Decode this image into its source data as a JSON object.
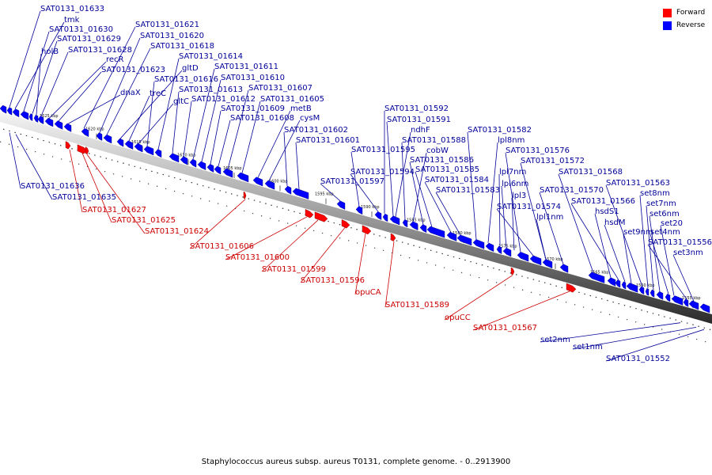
{
  "caption": "Staphylococcus aureus subsp. aureus T0131, complete genome. - 0..2913900",
  "legend": {
    "forward": {
      "label": "Forward",
      "color": "#ff0000"
    },
    "reverse": {
      "label": "Reverse",
      "color": "#0000ff"
    }
  },
  "colors": {
    "forward_label": "#cc0000",
    "reverse_label": "#000099"
  },
  "ticks": [
    "1625 kbp",
    "1620 kbp",
    "1615 kbp",
    "1610 kbp",
    "1605 kbp",
    "1600 kbp",
    "1595 kbp",
    "1590 kbp",
    "1585 kbp",
    "1580 kbp",
    "1575 kbp",
    "1570 kbp",
    "1565 kbp",
    "1560 kbp",
    "1555 kbp"
  ],
  "reverse_genes_above": [
    "SAT0131_01633",
    "tmk",
    "SAT0131_01630",
    "SAT0131_01629",
    "holB",
    "SAT0131_01628",
    "recR",
    "SAT0131_01623",
    "dnaX",
    "SAT0131_01621",
    "SAT0131_01620",
    "SAT0131_01618",
    "gltD",
    "treC",
    "gltC",
    "SAT0131_01616",
    "SAT0131_01614",
    "SAT0131_01613",
    "SAT0131_01612",
    "SAT0131_01611",
    "SAT0131_01610",
    "SAT0131_01609",
    "SAT0131_01608",
    "SAT0131_01607",
    "SAT0131_01605",
    "metB",
    "cysM",
    "SAT0131_01602",
    "SAT0131_01601",
    "SAT0131_01597",
    "SAT0131_01595",
    "SAT0131_01594",
    "SAT0131_01592",
    "SAT0131_01591",
    "ndhF",
    "SAT0131_01588",
    "cobW",
    "SAT0131_01586",
    "SAT0131_01585",
    "SAT0131_01584",
    "SAT0131_01583",
    "SAT0131_01582",
    "lpl8nm",
    "lpl7nm",
    "lpl6nm",
    "lpl3",
    "SAT0131_01576",
    "SAT0131_01574",
    "SAT0131_01572",
    "lpl1nm",
    "SAT0131_01570",
    "SAT0131_01568",
    "hsdS1",
    "SAT0131_01566",
    "hsdM",
    "set9nm",
    "SAT0131_01563",
    "set8nm",
    "set7nm",
    "set6nm",
    "set4nm",
    "set20",
    "SAT0131_01556",
    "set3nm"
  ],
  "reverse_genes_below": [
    "SAT0131_01636",
    "SAT0131_01635",
    "set2nm",
    "set1nm",
    "SAT0131_01552"
  ],
  "forward_genes": [
    "SAT0131_01627",
    "SAT0131_01625",
    "SAT0131_01624",
    "SAT0131_01606",
    "SAT0131_01600",
    "SAT0131_01599",
    "SAT0131_01596",
    "opuCA",
    "SAT0131_01589",
    "opuCC",
    "SAT0131_01567"
  ]
}
